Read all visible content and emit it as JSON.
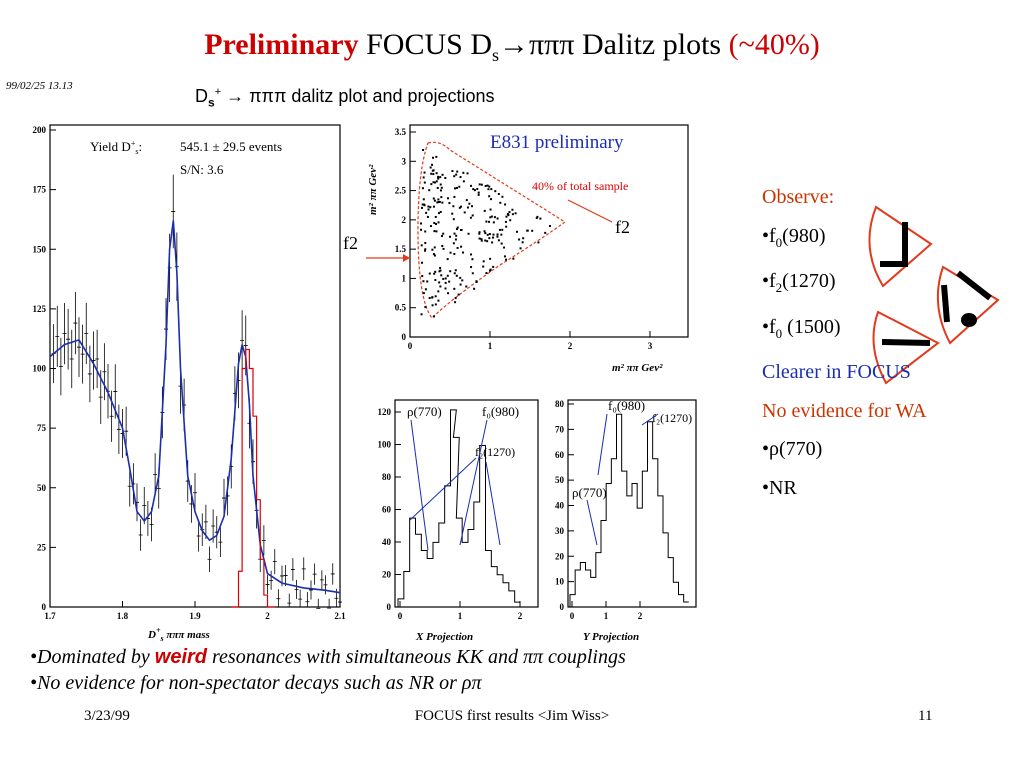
{
  "slide": {
    "title": {
      "preliminary": "Preliminary",
      "focus_ds": "FOCUS D",
      "sub_s": "s",
      "decay": "→πππ Dalitz plots",
      "fraction": "(~40%)"
    },
    "timestamp": "99/02/25   13.13",
    "plot_title": {
      "ds": "D",
      "sub_s": "s",
      "sup_plus": "+",
      "rest": "→ πππ dalitz plot and projections"
    }
  },
  "mass_plot": {
    "yield_label": "Yield D",
    "yield_value": "545.1 ±   29.5 events",
    "sn": "S/N: 3.6",
    "xlabel": "D",
    "xlabel_sup": "+",
    "xlabel_sub": "s",
    "xlabel_rest": " πππ mass",
    "y_ticks": [
      "200",
      "175",
      "150",
      "125",
      "100",
      "75",
      "50",
      "25",
      "0"
    ],
    "x_ticks": [
      "1.7",
      "1.8",
      "1.9",
      "2",
      "2.1"
    ]
  },
  "dalitz_plot": {
    "label": "E831 preliminary",
    "annotation": "40% of total sample",
    "ylabel": "m² ππ Gev²",
    "xlabel": "m² ππ Gev²",
    "y_ticks": [
      "3.5",
      "3",
      "2.5",
      "2",
      "1.5",
      "1",
      "0.5",
      "0"
    ],
    "x_ticks": [
      "0",
      "1",
      "2",
      "3"
    ],
    "f2_left": "f2",
    "f2_right": "f2"
  },
  "x_projection": {
    "xlabel": "X Projection",
    "y_ticks": [
      "120",
      "100",
      "80",
      "60",
      "40",
      "20",
      "0"
    ],
    "x_ticks": [
      "0",
      "1",
      "2"
    ],
    "rho": "ρ(770)",
    "f0": "f₀(980)",
    "f2": "f₂(1270)"
  },
  "y_projection": {
    "xlabel": "Y Projection",
    "y_ticks": [
      "80",
      "70",
      "60",
      "50",
      "40",
      "30",
      "20",
      "10",
      "0"
    ],
    "x_ticks": [
      "0",
      "1",
      "2"
    ],
    "rho": "ρ(770)",
    "f0": "f₀(980)",
    "f2": "f₂(1270)"
  },
  "observe": {
    "heading": "Observe:",
    "item1_pre": "•f",
    "item1_sub": "0",
    "item1_post": "(980)",
    "item2_pre": "•f",
    "item2_sub": "2",
    "item2_post": "(1270)",
    "item3_pre": "•f",
    "item3_sub": "0",
    "item3_post": " (1500)",
    "clearer": "Clearer in FOCUS",
    "no_wa": "No evidence for WA",
    "rho": "•ρ(770)",
    "nr": "•NR"
  },
  "bullets": {
    "b1_pre": "•Dominated by ",
    "b1_weird": "weird",
    "b1_post": " resonances with simultaneous KK and ππ couplings",
    "b2": "•No evidence for non-spectator decays such as NR or ρπ"
  },
  "footer": {
    "date": "3/23/99",
    "center": "FOCUS first results <Jim Wiss>",
    "page": "11"
  },
  "colors": {
    "title_red": "#cc0000",
    "fit_blue": "#1a2eb0",
    "signal_red": "#dd0000",
    "diagram_red": "#e23a1a"
  },
  "chart_data": [
    {
      "type": "line",
      "name": "mass_histogram",
      "xlim": [
        1.7,
        2.1
      ],
      "ylim": [
        0,
        200
      ],
      "x": [
        1.7,
        1.72,
        1.74,
        1.76,
        1.78,
        1.8,
        1.81,
        1.82,
        1.83,
        1.84,
        1.85,
        1.86,
        1.865,
        1.87,
        1.875,
        1.88,
        1.89,
        1.9,
        1.91,
        1.92,
        1.93,
        1.94,
        1.95,
        1.96,
        1.965,
        1.97,
        1.975,
        1.98,
        1.99,
        2.0,
        2.02,
        2.05,
        2.08,
        2.1
      ],
      "y": [
        105,
        110,
        112,
        102,
        90,
        75,
        58,
        40,
        36,
        40,
        55,
        110,
        150,
        162,
        140,
        100,
        55,
        40,
        32,
        28,
        30,
        38,
        62,
        102,
        110,
        105,
        85,
        55,
        26,
        14,
        10,
        8,
        7,
        6
      ]
    },
    {
      "type": "scatter",
      "name": "dalitz",
      "xlim": [
        0,
        3.5
      ],
      "ylim": [
        0,
        3.5
      ],
      "boundary": "triangular kinematic region, apex near (1.9, 1.9)"
    },
    {
      "type": "line",
      "name": "x_projection",
      "xlim": [
        0,
        2.4
      ],
      "ylim": [
        0,
        130
      ],
      "x": [
        0.0,
        0.1,
        0.2,
        0.3,
        0.4,
        0.5,
        0.6,
        0.7,
        0.8,
        0.9,
        0.95,
        1.0,
        1.1,
        1.2,
        1.3,
        1.4,
        1.5,
        1.6,
        1.7,
        1.8,
        1.9,
        2.0
      ],
      "y": [
        5,
        22,
        55,
        45,
        35,
        30,
        40,
        52,
        75,
        122,
        105,
        55,
        40,
        48,
        65,
        100,
        35,
        25,
        20,
        15,
        10,
        3
      ]
    },
    {
      "type": "line",
      "name": "y_projection",
      "xlim": [
        0,
        2.4
      ],
      "ylim": [
        0,
        85
      ],
      "x": [
        0.0,
        0.1,
        0.2,
        0.3,
        0.4,
        0.5,
        0.6,
        0.7,
        0.8,
        0.9,
        1.0,
        1.1,
        1.2,
        1.3,
        1.4,
        1.5,
        1.6,
        1.7,
        1.8,
        1.9,
        2.0,
        2.1,
        2.2
      ],
      "y": [
        5,
        15,
        18,
        15,
        12,
        22,
        35,
        50,
        60,
        78,
        55,
        45,
        50,
        40,
        55,
        75,
        60,
        45,
        30,
        20,
        10,
        5,
        2
      ]
    }
  ]
}
